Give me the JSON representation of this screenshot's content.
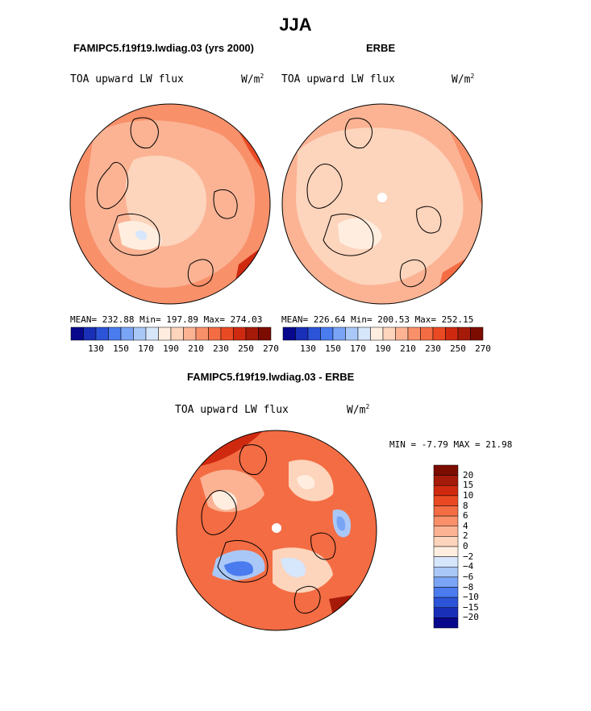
{
  "title": "JJA",
  "panels": [
    {
      "title": "FAMIPC5.f19f19.lwdiag.03 (yrs 2000)",
      "variable": "TOA upward LW flux",
      "units_base": "W/m",
      "units_exp": "2",
      "stats": "MEAN= 232.88   Min= 197.89   Max= 274.03"
    },
    {
      "title": "ERBE",
      "variable": "TOA upward LW flux",
      "units_base": "W/m",
      "units_exp": "2",
      "stats": "MEAN= 226.64   Min= 200.53   Max= 252.15"
    },
    {
      "title": "FAMIPC5.f19f19.lwdiag.03 - ERBE",
      "variable": "TOA upward LW flux",
      "units_base": "W/m",
      "units_exp": "2",
      "stats": "MIN =  -7.79 MAX =  21.98"
    }
  ],
  "colorbar_abs": {
    "ticks": [
      "130",
      "150",
      "170",
      "190",
      "210",
      "230",
      "250",
      "270"
    ],
    "colors": [
      "#08088c",
      "#1a2fb8",
      "#2c54d8",
      "#4a7bef",
      "#7aa4f5",
      "#aac8f7",
      "#d6e6fb",
      "#ffeee0",
      "#fdd4bc",
      "#fbb394",
      "#f8906a",
      "#f46c43",
      "#ea4a23",
      "#cf2a10",
      "#a51a08",
      "#7c0c00"
    ]
  },
  "colorbar_diff": {
    "labels": [
      "20",
      "15",
      "10",
      "8",
      "6",
      "4",
      "2",
      "0",
      "−2",
      "−4",
      "−6",
      "−8",
      "−10",
      "−15",
      "−20"
    ],
    "colors": [
      "#7c0c00",
      "#a51a08",
      "#cf2a10",
      "#ea4a23",
      "#f46c43",
      "#f8906a",
      "#fbb394",
      "#fdd4bc",
      "#ffeee0",
      "#d6e6fb",
      "#aac8f7",
      "#7aa4f5",
      "#4a7bef",
      "#2c54d8",
      "#1a2fb8",
      "#08088c"
    ]
  },
  "chart_data": [
    {
      "type": "heatmap",
      "projection": "north polar stereographic",
      "season": "JJA",
      "title": "FAMIPC5.f19f19.lwdiag.03 (yrs 2000)",
      "variable": "TOA upward LW flux",
      "units": "W/m2",
      "mean": 232.88,
      "min": 197.89,
      "max": 274.03,
      "contour_levels": [
        130,
        150,
        170,
        190,
        210,
        230,
        250,
        270
      ]
    },
    {
      "type": "heatmap",
      "projection": "north polar stereographic",
      "season": "JJA",
      "title": "ERBE",
      "variable": "TOA upward LW flux",
      "units": "W/m2",
      "mean": 226.64,
      "min": 200.53,
      "max": 252.15,
      "contour_levels": [
        130,
        150,
        170,
        190,
        210,
        230,
        250,
        270
      ]
    },
    {
      "type": "heatmap",
      "projection": "north polar stereographic",
      "season": "JJA",
      "title": "FAMIPC5.f19f19.lwdiag.03 - ERBE",
      "variable": "TOA upward LW flux",
      "units": "W/m2",
      "min": -7.79,
      "max": 21.98,
      "contour_levels": [
        -20,
        -15,
        -10,
        -8,
        -6,
        -4,
        -2,
        0,
        2,
        4,
        6,
        8,
        10,
        15,
        20
      ]
    }
  ]
}
